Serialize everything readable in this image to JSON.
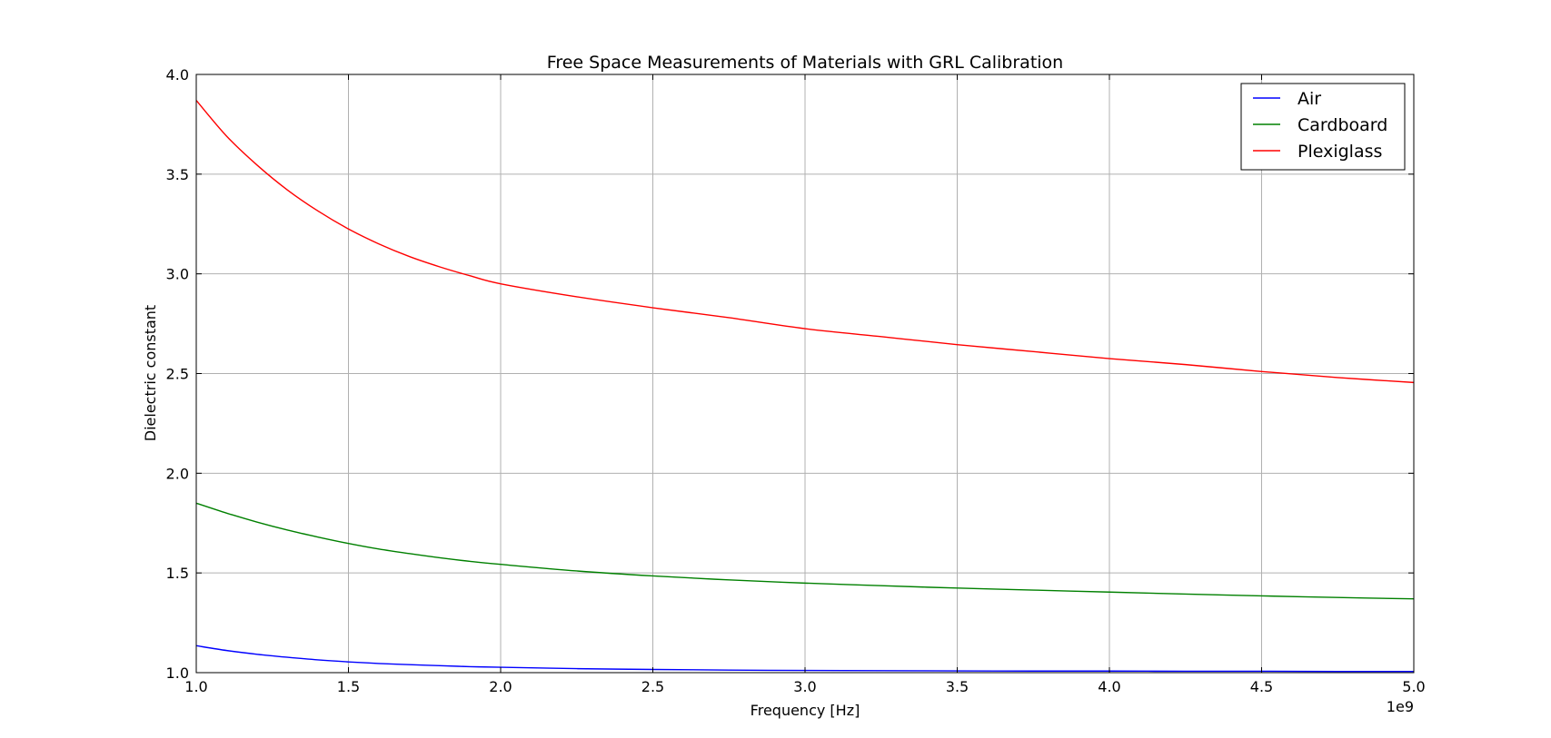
{
  "chart_data": {
    "type": "line",
    "title": "Free Space Measurements of Materials with GRL Calibration",
    "xlabel": "Frequency [Hz]",
    "ylabel": "Dielectric constant",
    "x_offset_label": "1e9",
    "xlim": [
      1.0,
      5.0
    ],
    "ylim": [
      1.0,
      4.0
    ],
    "x_ticks": [
      "1.0",
      "1.5",
      "2.0",
      "2.5",
      "3.0",
      "3.5",
      "4.0",
      "4.5",
      "5.0"
    ],
    "y_ticks": [
      "1.0",
      "1.5",
      "2.0",
      "2.5",
      "3.0",
      "3.5",
      "4.0"
    ],
    "grid": true,
    "legend_position": "top-right",
    "x": [
      1.0,
      1.1,
      1.2,
      1.3,
      1.4,
      1.5,
      1.6,
      1.7,
      1.8,
      1.9,
      2.0,
      2.25,
      2.5,
      2.75,
      3.0,
      3.25,
      3.5,
      3.75,
      4.0,
      4.25,
      4.5,
      4.75,
      5.0
    ],
    "series": [
      {
        "name": "Air",
        "color": "#0000ff",
        "values": [
          1.135,
          1.111,
          1.092,
          1.077,
          1.064,
          1.054,
          1.046,
          1.04,
          1.035,
          1.03,
          1.027,
          1.02,
          1.016,
          1.013,
          1.011,
          1.01,
          1.009,
          1.008,
          1.008,
          1.007,
          1.007,
          1.006,
          1.006
        ]
      },
      {
        "name": "Cardboard",
        "color": "#008000",
        "values": [
          1.85,
          1.8,
          1.755,
          1.715,
          1.68,
          1.648,
          1.62,
          1.597,
          1.576,
          1.558,
          1.543,
          1.51,
          1.485,
          1.465,
          1.449,
          1.436,
          1.424,
          1.414,
          1.404,
          1.394,
          1.385,
          1.377,
          1.37
        ]
      },
      {
        "name": "Plexiglass",
        "color": "#ff0000",
        "values": [
          3.87,
          3.69,
          3.545,
          3.42,
          3.315,
          3.225,
          3.15,
          3.087,
          3.035,
          2.99,
          2.95,
          2.885,
          2.83,
          2.78,
          2.725,
          2.685,
          2.645,
          2.61,
          2.575,
          2.545,
          2.51,
          2.48,
          2.455
        ]
      }
    ]
  }
}
